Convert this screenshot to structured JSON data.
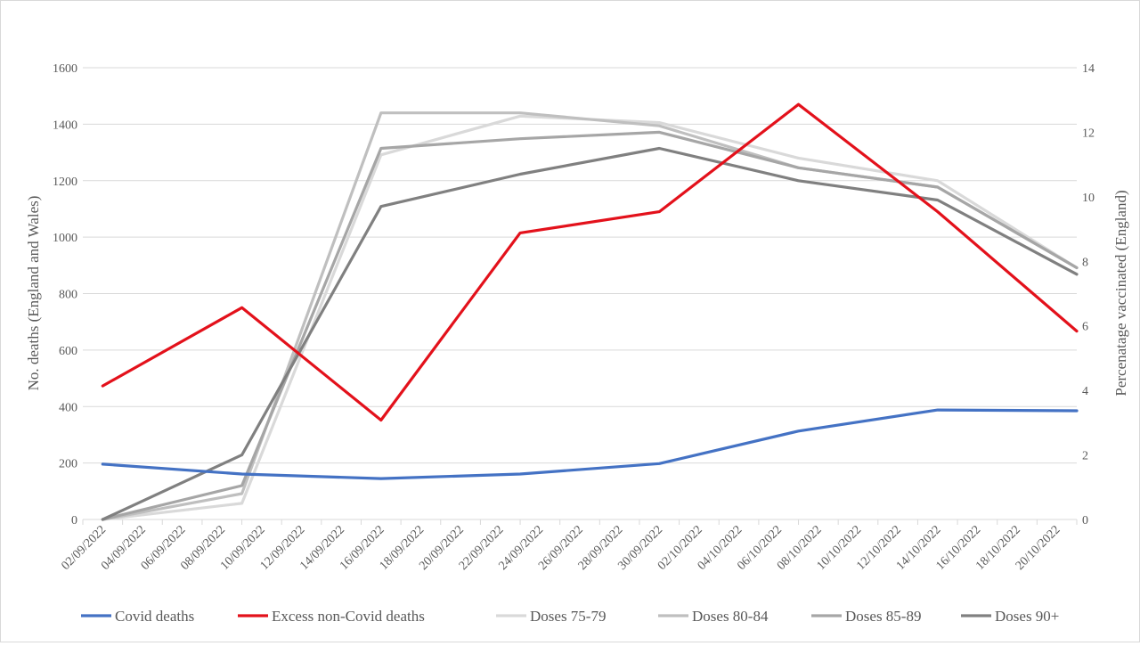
{
  "chart_data": {
    "type": "line",
    "title": "",
    "ylabel": "No. deaths (England and Wales)",
    "y2label": "Percenatage vaccinated (England)",
    "ylim": [
      0,
      1600
    ],
    "y2lim": [
      0,
      14
    ],
    "yticks": [
      0,
      200,
      400,
      600,
      800,
      1000,
      1200,
      1400,
      1600
    ],
    "y2ticks": [
      0,
      2,
      4,
      6,
      8,
      10,
      12,
      14
    ],
    "x_categories": [
      "02/09/2022",
      "04/09/2022",
      "06/09/2022",
      "08/09/2022",
      "10/09/2022",
      "12/09/2022",
      "14/09/2022",
      "16/09/2022",
      "18/09/2022",
      "20/09/2022",
      "22/09/2022",
      "24/09/2022",
      "26/09/2022",
      "28/09/2022",
      "30/09/2022",
      "02/10/2022",
      "04/10/2022",
      "06/10/2022",
      "08/10/2022",
      "10/10/2022",
      "12/10/2022",
      "14/10/2022",
      "16/10/2022",
      "18/10/2022",
      "20/10/2022"
    ],
    "grid": true,
    "legend_position": "bottom",
    "series": [
      {
        "name": "Covid deaths",
        "axis": "left",
        "color": "#4472c4",
        "x": [
          "02/09/2022",
          "09/09/2022",
          "16/09/2022",
          "23/09/2022",
          "30/09/2022",
          "07/10/2022",
          "14/10/2022",
          "21/10/2022"
        ],
        "values": [
          196,
          161,
          145,
          161,
          198,
          313,
          388,
          385
        ]
      },
      {
        "name": "Excess non-Covid deaths",
        "axis": "left",
        "color": "#e3111b",
        "x": [
          "02/09/2022",
          "09/09/2022",
          "16/09/2022",
          "23/09/2022",
          "30/09/2022",
          "07/10/2022",
          "14/10/2022",
          "21/10/2022"
        ],
        "values": [
          473,
          750,
          352,
          1015,
          1090,
          1470,
          1090,
          667
        ]
      },
      {
        "name": "Doses 75-79",
        "axis": "right",
        "color": "#d9d9d9",
        "x": [
          "02/09/2022",
          "09/09/2022",
          "16/09/2022",
          "23/09/2022",
          "30/09/2022",
          "07/10/2022",
          "14/10/2022",
          "21/10/2022"
        ],
        "values": [
          0,
          0.5,
          11.3,
          12.5,
          12.3,
          11.2,
          10.5,
          7.8
        ]
      },
      {
        "name": "Doses 80-84",
        "axis": "right",
        "color": "#bfbfbf",
        "x": [
          "02/09/2022",
          "09/09/2022",
          "16/09/2022",
          "23/09/2022",
          "30/09/2022",
          "07/10/2022",
          "14/10/2022",
          "21/10/2022"
        ],
        "values": [
          0,
          0.8,
          12.6,
          12.6,
          12.2,
          10.9,
          10.3,
          7.8
        ]
      },
      {
        "name": "Doses 85-89",
        "axis": "right",
        "color": "#a6a6a6",
        "x": [
          "02/09/2022",
          "09/09/2022",
          "16/09/2022",
          "23/09/2022",
          "30/09/2022",
          "07/10/2022",
          "14/10/2022",
          "21/10/2022"
        ],
        "values": [
          0,
          1.05,
          11.5,
          11.8,
          12.0,
          10.9,
          10.3,
          7.8
        ]
      },
      {
        "name": "Doses 90+",
        "axis": "right",
        "color": "#808080",
        "x": [
          "02/09/2022",
          "09/09/2022",
          "16/09/2022",
          "23/09/2022",
          "30/09/2022",
          "07/10/2022",
          "14/10/2022",
          "21/10/2022"
        ],
        "values": [
          0,
          2.0,
          9.7,
          10.7,
          11.5,
          10.5,
          9.9,
          7.6
        ]
      }
    ]
  }
}
